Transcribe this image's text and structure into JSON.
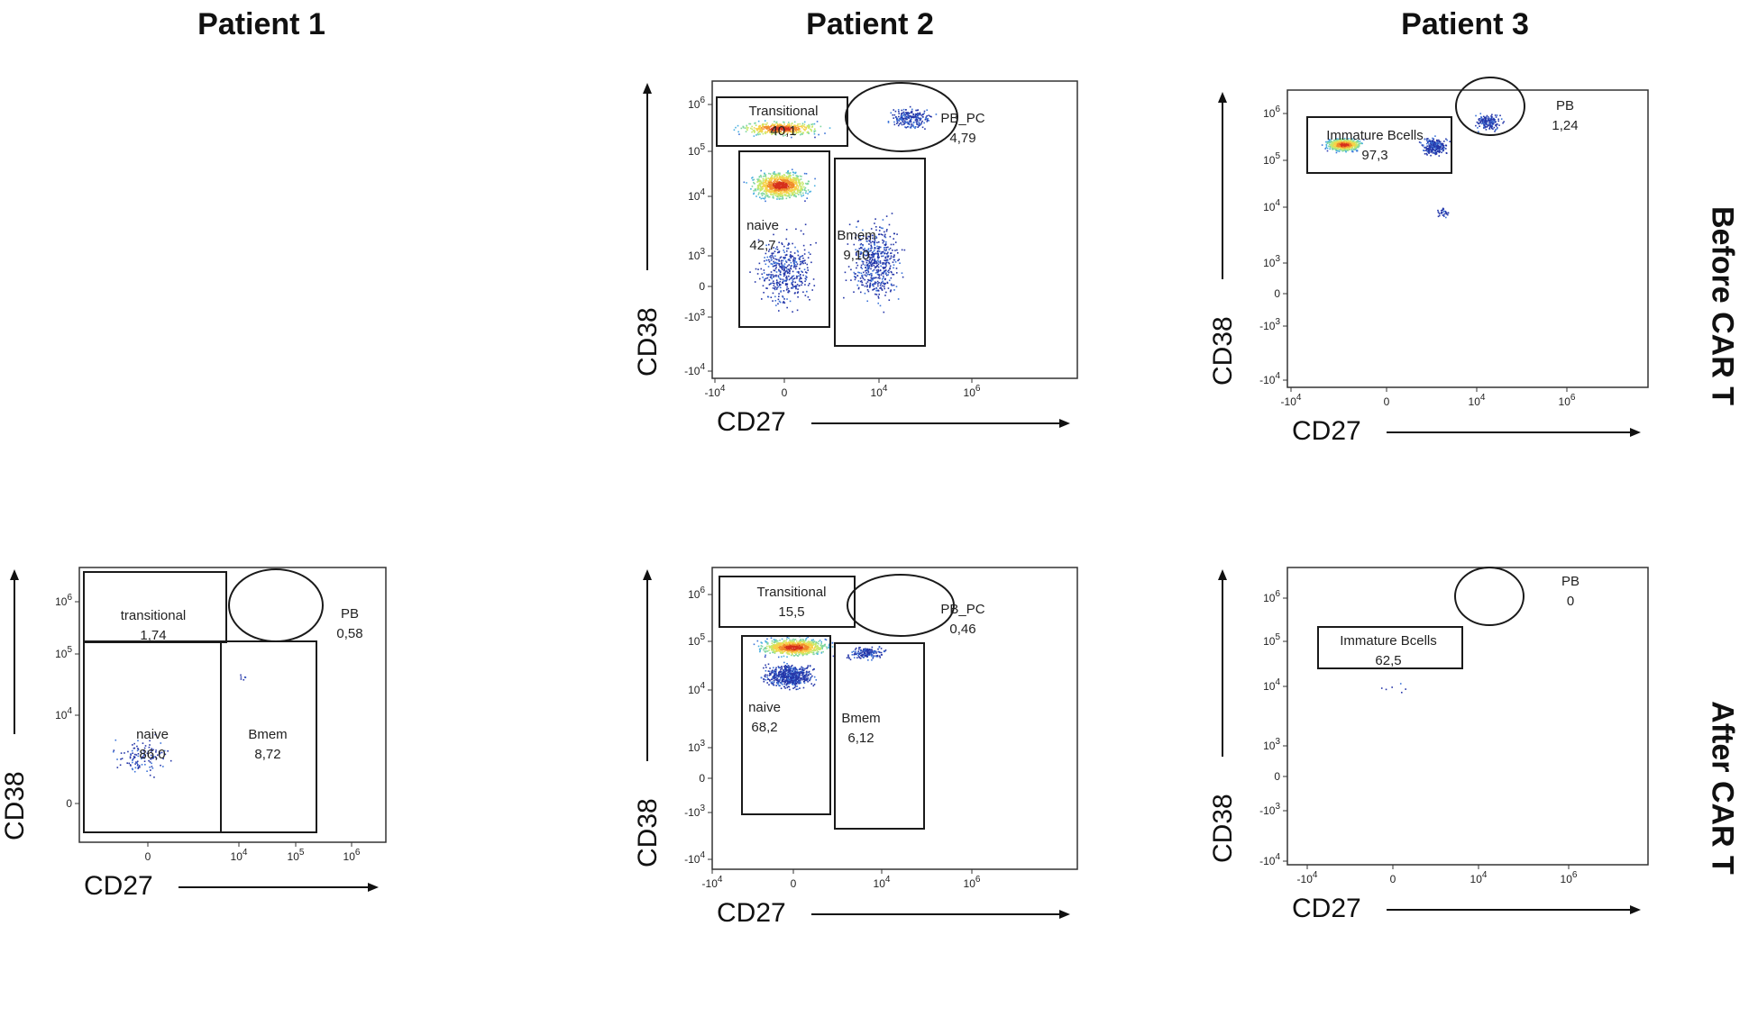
{
  "column_headers": [
    "Patient 1",
    "Patient 2",
    "Patient 3"
  ],
  "row_headers": [
    "Before CAR T",
    "After CAR T"
  ],
  "chart_data": [
    {
      "type": "scatter",
      "panel": "Patient 2 - Before CAR T",
      "xlabel": "CD27",
      "ylabel": "CD38",
      "x_ticks": [
        "-10^4",
        "0",
        "10^4",
        "10^6"
      ],
      "y_ticks": [
        "10^6",
        "10^5",
        "10^4",
        "10^3",
        "0",
        "-10^3",
        "-10^4"
      ],
      "gates": [
        {
          "name": "Transitional",
          "value": "40,1"
        },
        {
          "name": "PB_PC",
          "value": "4,79"
        },
        {
          "name": "naive",
          "value": "42,7"
        },
        {
          "name": "Bmem",
          "value": "9,10"
        }
      ]
    },
    {
      "type": "scatter",
      "panel": "Patient 3 - Before CAR T",
      "xlabel": "CD27",
      "ylabel": "CD38",
      "x_ticks": [
        "-10^4",
        "0",
        "10^4",
        "10^6"
      ],
      "y_ticks": [
        "10^6",
        "10^5",
        "10^4",
        "10^3",
        "0",
        "-10^3",
        "-10^4"
      ],
      "gates": [
        {
          "name": "Immature Bcells",
          "value": "97,3"
        },
        {
          "name": "PB",
          "value": "1,24"
        }
      ]
    },
    {
      "type": "scatter",
      "panel": "Patient 1 - After CAR T",
      "xlabel": "CD27",
      "ylabel": "CD38",
      "x_ticks": [
        "0",
        "10^4",
        "10^5",
        "10^6"
      ],
      "y_ticks": [
        "10^6",
        "10^5",
        "10^4",
        "0"
      ],
      "gates": [
        {
          "name": "transitional",
          "value": "1,74"
        },
        {
          "name": "PB",
          "value": "0,58"
        },
        {
          "name": "naive",
          "value": "86,0"
        },
        {
          "name": "Bmem",
          "value": "8,72"
        }
      ]
    },
    {
      "type": "scatter",
      "panel": "Patient 2 - After CAR T",
      "xlabel": "CD27",
      "ylabel": "CD38",
      "x_ticks": [
        "-10^4",
        "0",
        "10^4",
        "10^6"
      ],
      "y_ticks": [
        "10^6",
        "10^5",
        "10^4",
        "10^3",
        "0",
        "-10^3",
        "-10^4"
      ],
      "gates": [
        {
          "name": "Transitional",
          "value": "15,5"
        },
        {
          "name": "PB_PC",
          "value": "0,46"
        },
        {
          "name": "naive",
          "value": "68,2"
        },
        {
          "name": "Bmem",
          "value": "6,12"
        }
      ]
    },
    {
      "type": "scatter",
      "panel": "Patient 3 - After CAR T",
      "xlabel": "CD27",
      "ylabel": "CD38",
      "x_ticks": [
        "-10^4",
        "0",
        "10^4",
        "10^6"
      ],
      "y_ticks": [
        "10^6",
        "10^5",
        "10^4",
        "10^3",
        "0",
        "-10^3",
        "-10^4"
      ],
      "gates": [
        {
          "name": "Immature Bcells",
          "value": "62,5"
        },
        {
          "name": "PB",
          "value": "0"
        }
      ]
    }
  ]
}
